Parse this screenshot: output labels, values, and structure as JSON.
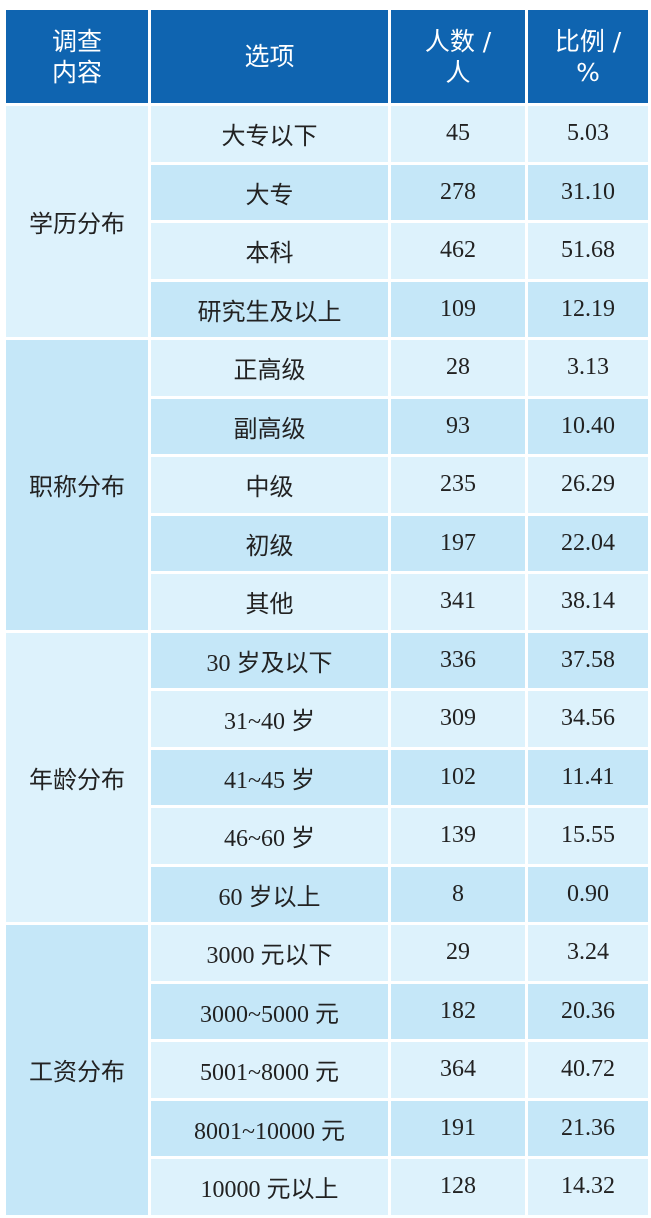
{
  "header": {
    "col1_line1": "调查",
    "col1_line2": "内容",
    "col2": "选项",
    "col3_line1": "人数 /",
    "col3_line2": "人",
    "col4_line1": "比例 /",
    "col4_line2": "%"
  },
  "colors": {
    "header": "#0f64b0",
    "row_light": "#ddf2fc",
    "row_dark": "#c5e7f8"
  },
  "groups": [
    {
      "name": "学历分布",
      "rows": [
        {
          "option": "大专以下",
          "count": "45",
          "pct": "5.03"
        },
        {
          "option": "大专",
          "count": "278",
          "pct": "31.10"
        },
        {
          "option": "本科",
          "count": "462",
          "pct": "51.68"
        },
        {
          "option": "研究生及以上",
          "count": "109",
          "pct": "12.19"
        }
      ]
    },
    {
      "name": "职称分布",
      "rows": [
        {
          "option": "正高级",
          "count": "28",
          "pct": "3.13"
        },
        {
          "option": "副高级",
          "count": "93",
          "pct": "10.40"
        },
        {
          "option": "中级",
          "count": "235",
          "pct": "26.29"
        },
        {
          "option": "初级",
          "count": "197",
          "pct": "22.04"
        },
        {
          "option": "其他",
          "count": "341",
          "pct": "38.14"
        }
      ]
    },
    {
      "name": "年龄分布",
      "rows": [
        {
          "option": "30 岁及以下",
          "count": "336",
          "pct": "37.58"
        },
        {
          "option": "31~40 岁",
          "count": "309",
          "pct": "34.56"
        },
        {
          "option": "41~45 岁",
          "count": "102",
          "pct": "11.41"
        },
        {
          "option": "46~60 岁",
          "count": "139",
          "pct": "15.55"
        },
        {
          "option": "60 岁以上",
          "count": "8",
          "pct": "0.90"
        }
      ]
    },
    {
      "name": "工资分布",
      "rows": [
        {
          "option": "3000 元以下",
          "count": "29",
          "pct": "3.24"
        },
        {
          "option": "3000~5000 元",
          "count": "182",
          "pct": "20.36"
        },
        {
          "option": "5001~8000 元",
          "count": "364",
          "pct": "40.72"
        },
        {
          "option": "8001~10000 元",
          "count": "191",
          "pct": "21.36"
        },
        {
          "option": "10000 元以上",
          "count": "128",
          "pct": "14.32"
        }
      ]
    }
  ]
}
